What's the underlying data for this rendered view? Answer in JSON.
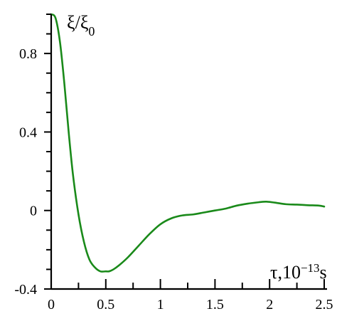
{
  "chart_data": {
    "type": "line",
    "title": "",
    "xlabel": "τ,10⁻¹³s",
    "ylabel": "ξ/ξ₀",
    "xlim": [
      0,
      2.5
    ],
    "ylim": [
      -0.4,
      1.0
    ],
    "x_ticks": [
      0,
      0.5,
      1,
      1.5,
      2,
      2.5
    ],
    "x_tick_labels": [
      "0",
      "0.5",
      "1",
      "1.5",
      "2",
      "2.5"
    ],
    "x_minor_step": 0.25,
    "y_ticks": [
      -0.4,
      0,
      0.4,
      0.8
    ],
    "y_tick_labels": [
      "-0.4",
      "0",
      "0.4",
      "0.8"
    ],
    "y_minor_step": 0.2,
    "grid": false,
    "line_color": "#1a8a1a",
    "series": [
      {
        "x": [
          0,
          0.04,
          0.08,
          0.12,
          0.16,
          0.2,
          0.25,
          0.3,
          0.35,
          0.4,
          0.45,
          0.5,
          0.53,
          0.57,
          0.62,
          0.7,
          0.8,
          0.9,
          1.0,
          1.1,
          1.2,
          1.3,
          1.4,
          1.5,
          1.6,
          1.7,
          1.8,
          1.9,
          1.97,
          2.05,
          2.15,
          2.25,
          2.35,
          2.45,
          2.5
        ],
        "y": [
          1.0,
          0.98,
          0.86,
          0.65,
          0.4,
          0.18,
          -0.02,
          -0.16,
          -0.25,
          -0.29,
          -0.31,
          -0.31,
          -0.31,
          -0.3,
          -0.28,
          -0.24,
          -0.18,
          -0.12,
          -0.07,
          -0.04,
          -0.025,
          -0.02,
          -0.01,
          0.0,
          0.01,
          0.025,
          0.035,
          0.042,
          0.045,
          0.04,
          0.032,
          0.03,
          0.027,
          0.025,
          0.02
        ]
      }
    ]
  }
}
